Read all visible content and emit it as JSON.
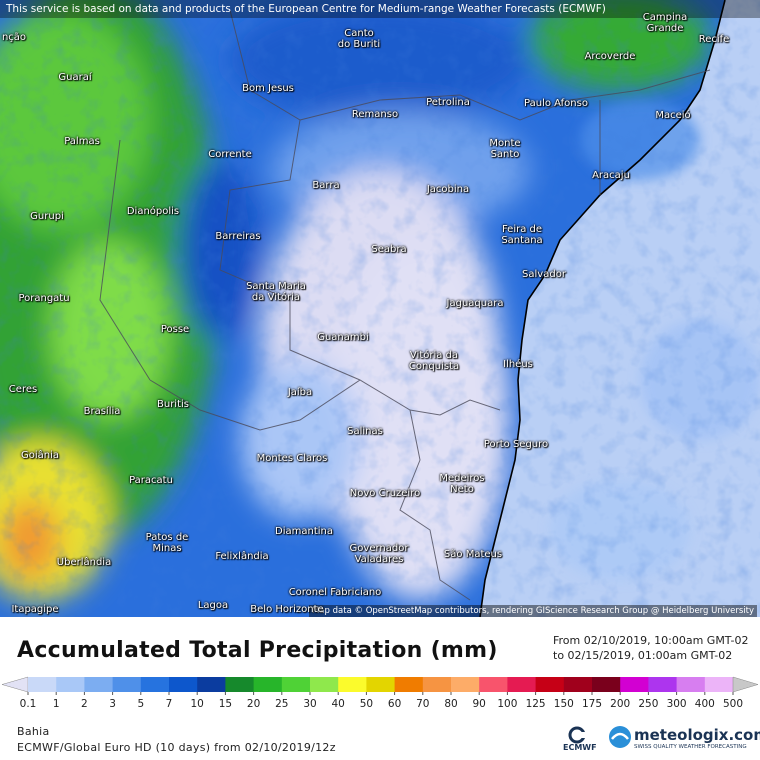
{
  "notice": "This service is based on data and products of the European Centre for Medium-range Weather Forecasts (ECMWF)",
  "attribution": "Map data © OpenStreetMap contributors, rendering GIScience Research Group @ Heidelberg University",
  "cities": [
    "nção",
    "Canto\ndo Buriti",
    "Campina\nGrande",
    "Recife",
    "Guaraí",
    "Arcoverde",
    "Bom Jesus",
    "Petrolina",
    "Paulo Afonso",
    "Remanso",
    "Maceió",
    "Palmas",
    "Monte\nSanto",
    "Corrente",
    "Aracaju",
    "Barra",
    "Jacobina",
    "Gurupi",
    "Dianópolis",
    "Feira de\nSantana",
    "Barreiras",
    "Seabra",
    "Salvador",
    "Santa Maria\nda Vitória",
    "Porangatu",
    "Jaguaquara",
    "Posse",
    "Guanambi",
    "Vitória da\nConquista",
    "Ilhéus",
    "Ceres",
    "Jaíba",
    "Buritis",
    "Brasília",
    "Salinas",
    "Porto Seguro",
    "Goiânia",
    "Montes Claros",
    "Paracatu",
    "Medeiros\nNeto",
    "Novo Cruzeiro",
    "Diamantina",
    "Patos de\nMinas",
    "Governador\nValadares",
    "São Mateus",
    "Felixlândia",
    "Uberlândia",
    "Coronel Fabriciano",
    "Lagoa",
    "Itapagipe",
    "Belo Horizonte"
  ],
  "legend": {
    "title": "Accumulated Total Precipitation (mm)",
    "from": "From 02/10/2019, 10:00am GMT-02",
    "to": "to 02/15/2019, 01:00am GMT-02",
    "levels": [
      0.1,
      1,
      2,
      3,
      5,
      7,
      10,
      15,
      20,
      25,
      30,
      40,
      50,
      60,
      70,
      80,
      90,
      100,
      125,
      150,
      175,
      200,
      250,
      300,
      400,
      500
    ],
    "colors": [
      "#e2e2f5",
      "#c9d9f8",
      "#a9c8f7",
      "#7cadf1",
      "#4f90e9",
      "#2673df",
      "#0d57cc",
      "#0b3c9f",
      "#16892c",
      "#27b52a",
      "#4fd236",
      "#8fe84c",
      "#fbfb2c",
      "#e3d500",
      "#f07c00",
      "#f69442",
      "#fdac68",
      "#f8546c",
      "#e51b52",
      "#c60016",
      "#a0001c",
      "#7a001c",
      "#d200d2",
      "#ad35ee",
      "#d77ef0",
      "#ecb4f8",
      "#c8c8c8"
    ]
  },
  "footer": {
    "region": "Bahia",
    "model": "ECMWF/Global Euro HD (10 days) from 02/10/2019/12z"
  },
  "logo": {
    "ecmwf": "ECMWF",
    "name": "meteologix.com",
    "tagline": "SWISS QUALITY WEATHER FORECASTING"
  }
}
